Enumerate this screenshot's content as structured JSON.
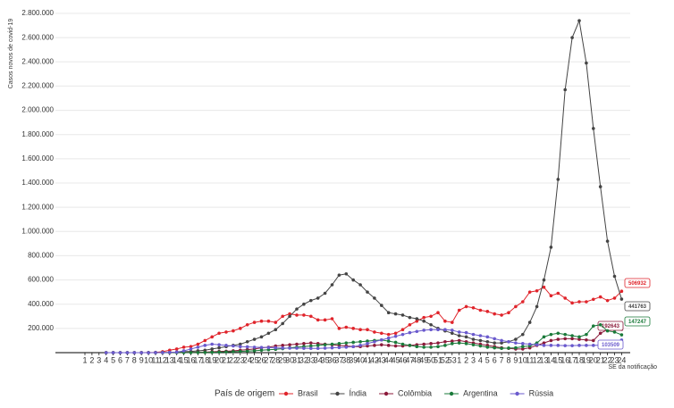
{
  "chart_data": {
    "type": "line",
    "y_label": "Casos novos de covid-19",
    "x_label": "SE da notificação",
    "legend_title": "País de origem",
    "legend": "bottom",
    "grid": true,
    "categories": [
      "1",
      "2",
      "3",
      "4",
      "5",
      "6",
      "7",
      "8",
      "9",
      "10",
      "11",
      "12",
      "13",
      "14",
      "15",
      "16",
      "17",
      "18",
      "19",
      "20",
      "21",
      "22",
      "23",
      "24",
      "25",
      "26",
      "27",
      "28",
      "29",
      "30",
      "31",
      "32",
      "33",
      "34",
      "35",
      "36",
      "37",
      "38",
      "39",
      "40",
      "41",
      "42",
      "43",
      "44",
      "45",
      "46",
      "47",
      "48",
      "49",
      "50",
      "51",
      "52",
      "53",
      "1",
      "2",
      "3",
      "4",
      "5",
      "6",
      "7",
      "8",
      "9",
      "10",
      "11",
      "12",
      "13",
      "14",
      "15",
      "16",
      "17",
      "18",
      "19",
      "20",
      "21",
      "22",
      "23",
      "24"
    ],
    "ylim": [
      0,
      2800000
    ],
    "yticks": [
      {
        "value": 200000,
        "label": "200.000"
      },
      {
        "value": 400000,
        "label": "400.000"
      },
      {
        "value": 600000,
        "label": "600.000"
      },
      {
        "value": 800000,
        "label": "800.000"
      },
      {
        "value": 1000000,
        "label": "1.000.000"
      },
      {
        "value": 1200000,
        "label": "1.200.000"
      },
      {
        "value": 1400000,
        "label": "1.400.000"
      },
      {
        "value": 1600000,
        "label": "1.600.000"
      },
      {
        "value": 1800000,
        "label": "1.800.000"
      },
      {
        "value": 2000000,
        "label": "2.000.000"
      },
      {
        "value": 2200000,
        "label": "2.200.000"
      },
      {
        "value": 2400000,
        "label": "2.400.000"
      },
      {
        "value": 2600000,
        "label": "2.600.000"
      },
      {
        "value": 2800000,
        "label": "2.800.000"
      }
    ],
    "series": [
      {
        "name": "Brasil",
        "color": "#e0242b",
        "values": [
          null,
          null,
          null,
          0,
          0,
          0,
          0,
          0,
          100,
          500,
          2000,
          8000,
          20000,
          30000,
          45000,
          50000,
          70000,
          100000,
          130000,
          160000,
          170000,
          180000,
          200000,
          230000,
          250000,
          260000,
          260000,
          250000,
          300000,
          320000,
          310000,
          310000,
          300000,
          270000,
          270000,
          280000,
          200000,
          210000,
          200000,
          190000,
          190000,
          170000,
          160000,
          150000,
          160000,
          190000,
          230000,
          260000,
          290000,
          300000,
          330000,
          260000,
          250000,
          350000,
          380000,
          370000,
          350000,
          340000,
          320000,
          310000,
          330000,
          380000,
          420000,
          500000,
          510000,
          540000,
          470000,
          490000,
          450000,
          410000,
          420000,
          420000,
          440000,
          460000,
          430000,
          450000,
          506932
        ]
      },
      {
        "name": "Índia",
        "color": "#444444",
        "values": [
          null,
          null,
          null,
          0,
          0,
          0,
          0,
          0,
          0,
          100,
          200,
          500,
          1500,
          5000,
          8000,
          10000,
          15000,
          20000,
          30000,
          40000,
          50000,
          60000,
          70000,
          90000,
          110000,
          130000,
          160000,
          190000,
          240000,
          300000,
          360000,
          400000,
          430000,
          450000,
          490000,
          560000,
          640000,
          650000,
          600000,
          560000,
          500000,
          450000,
          390000,
          330000,
          320000,
          310000,
          290000,
          280000,
          260000,
          230000,
          200000,
          180000,
          160000,
          140000,
          130000,
          110000,
          100000,
          90000,
          80000,
          80000,
          90000,
          110000,
          150000,
          250000,
          380000,
          600000,
          870000,
          1430000,
          2170000,
          2600000,
          2740000,
          2390000,
          1850000,
          1370000,
          920000,
          630000,
          441763
        ]
      },
      {
        "name": "Colômbia",
        "color": "#8b1a3a",
        "values": [
          null,
          null,
          null,
          0,
          0,
          0,
          0,
          0,
          0,
          0,
          100,
          500,
          1000,
          2000,
          2500,
          3000,
          4000,
          5000,
          7000,
          10000,
          12000,
          15000,
          20000,
          25000,
          30000,
          40000,
          45000,
          55000,
          60000,
          65000,
          70000,
          75000,
          80000,
          75000,
          70000,
          65000,
          60000,
          55000,
          50000,
          50000,
          55000,
          60000,
          65000,
          60000,
          55000,
          55000,
          60000,
          65000,
          70000,
          75000,
          80000,
          90000,
          95000,
          100000,
          90000,
          80000,
          70000,
          60000,
          50000,
          40000,
          35000,
          30000,
          30000,
          40000,
          60000,
          80000,
          100000,
          110000,
          115000,
          115000,
          110000,
          105000,
          100000,
          160000,
          190000,
          200000,
          192643
        ]
      },
      {
        "name": "Argentina",
        "color": "#1a7a3a",
        "values": [
          null,
          null,
          null,
          0,
          0,
          0,
          0,
          0,
          0,
          0,
          100,
          300,
          500,
          700,
          800,
          1000,
          1500,
          2000,
          3000,
          5000,
          6000,
          8000,
          10000,
          13000,
          16000,
          20000,
          24000,
          28000,
          33000,
          40000,
          45000,
          50000,
          55000,
          60000,
          65000,
          70000,
          75000,
          80000,
          85000,
          90000,
          95000,
          100000,
          105000,
          95000,
          85000,
          70000,
          60000,
          50000,
          45000,
          45000,
          50000,
          60000,
          75000,
          80000,
          75000,
          65000,
          55000,
          45000,
          40000,
          35000,
          38000,
          40000,
          50000,
          55000,
          80000,
          130000,
          150000,
          160000,
          150000,
          140000,
          130000,
          150000,
          220000,
          230000,
          180000,
          170000,
          147247
        ]
      },
      {
        "name": "Rússia",
        "color": "#6a5acd",
        "values": [
          null,
          null,
          null,
          0,
          0,
          0,
          0,
          0,
          0,
          50,
          100,
          500,
          2000,
          5000,
          15000,
          30000,
          45000,
          60000,
          70000,
          65000,
          60000,
          55000,
          50000,
          48000,
          45000,
          43000,
          42000,
          40000,
          38000,
          37000,
          37000,
          36000,
          35000,
          35000,
          37000,
          40000,
          42000,
          45000,
          50000,
          60000,
          75000,
          90000,
          105000,
          120000,
          135000,
          150000,
          165000,
          175000,
          185000,
          190000,
          190000,
          190000,
          185000,
          170000,
          165000,
          150000,
          140000,
          130000,
          115000,
          100000,
          90000,
          80000,
          75000,
          70000,
          65000,
          60000,
          60000,
          60000,
          58000,
          58000,
          60000,
          60000,
          60000,
          62000,
          63000,
          65000,
          103509
        ]
      }
    ]
  }
}
